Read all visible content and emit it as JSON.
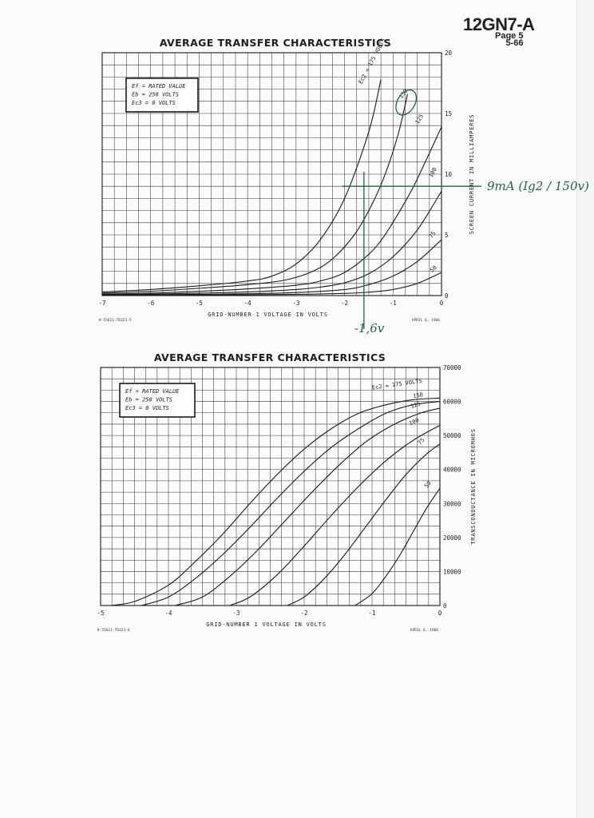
{
  "header": {
    "tube_code": "12GN7-A",
    "page_label": "Page 5",
    "date_code": "5-66"
  },
  "chart_data": [
    {
      "type": "line",
      "title": "AVERAGE TRANSFER CHARACTERISTICS",
      "xlabel": "GRID-NUMBER 1 VOLTAGE IN VOLTS",
      "ylabel": "SCREEN CURRENT IN MILLIAMPERES",
      "xlim": [
        -7,
        0
      ],
      "ylim": [
        0,
        20
      ],
      "x_ticks": [
        "-7",
        "-6",
        "-5",
        "-4",
        "-3",
        "-2",
        "-1",
        "0"
      ],
      "y_ticks": [
        "0",
        "5",
        "10",
        "15",
        "20"
      ],
      "grid": true,
      "conditions": [
        "Ef = RATED VALUE",
        "Eb = 250 VOLTS",
        "Ec3 = 0 VOLTS"
      ],
      "curve_param": "Ec2 =",
      "curve_unit": "VOLTS",
      "series": [
        {
          "name": "175",
          "x": [
            -7,
            -6,
            -5,
            -4,
            -3.5,
            -3,
            -2.5,
            -2,
            -1.5,
            -1.25
          ],
          "y": [
            0.3,
            0.5,
            0.8,
            1.2,
            1.6,
            2.6,
            4.6,
            8.0,
            13.5,
            17.8
          ]
        },
        {
          "name": "150",
          "x": [
            -7,
            -6,
            -5,
            -4,
            -3.2,
            -2.6,
            -2.2,
            -1.8,
            -1.5,
            -1.2,
            -0.9,
            -0.7
          ],
          "y": [
            0.2,
            0.35,
            0.6,
            0.9,
            1.3,
            2.1,
            3.2,
            5.0,
            7.0,
            9.6,
            13.2,
            16.6
          ]
        },
        {
          "name": "125",
          "x": [
            -7,
            -6,
            -5,
            -4,
            -3,
            -2.5,
            -2,
            -1.5,
            -1.2,
            -0.9,
            -0.6,
            -0.3,
            0
          ],
          "y": [
            0.12,
            0.2,
            0.35,
            0.55,
            0.85,
            1.2,
            1.9,
            3.4,
            4.8,
            6.7,
            8.8,
            11.3,
            13.9
          ]
        },
        {
          "name": "100",
          "x": [
            -7,
            -6,
            -5,
            -4,
            -3,
            -2.5,
            -2,
            -1.5,
            -1,
            -0.5,
            0
          ],
          "y": [
            0.08,
            0.12,
            0.2,
            0.3,
            0.5,
            0.7,
            1.05,
            1.8,
            3.2,
            5.4,
            8.6
          ]
        },
        {
          "name": "75",
          "x": [
            -7,
            -6,
            -5,
            -4,
            -3,
            -2,
            -1.5,
            -1,
            -0.5,
            0
          ],
          "y": [
            0.05,
            0.07,
            0.1,
            0.15,
            0.25,
            0.5,
            0.9,
            1.6,
            2.8,
            4.6
          ]
        },
        {
          "name": "50",
          "x": [
            -7,
            -6,
            -5,
            -4,
            -3,
            -2,
            -1.5,
            -1,
            -0.5,
            0
          ],
          "y": [
            0.02,
            0.03,
            0.05,
            0.07,
            0.1,
            0.18,
            0.28,
            0.5,
            1.0,
            1.9
          ]
        }
      ],
      "footnote_left": "K-55611-TD323-5",
      "footnote_right": "APRIL 6, 1966",
      "annotations": {
        "handwritten_right": "9mA (Ig2 / 150v)",
        "handwritten_bottom": "-1,6v",
        "marked_value_ma": 9,
        "marked_grid_v": -1.6,
        "circled_curve": "150"
      }
    },
    {
      "type": "line",
      "title": "AVERAGE TRANSFER CHARACTERISTICS",
      "xlabel": "GRID-NUMBER 1 VOLTAGE IN VOLTS",
      "ylabel": "TRANSCONDUCTANCE IN MICROMHOS",
      "xlim": [
        -5,
        0
      ],
      "ylim": [
        0,
        70000
      ],
      "x_ticks": [
        "-5",
        "-4",
        "-3",
        "-2",
        "-1",
        "0"
      ],
      "y_ticks": [
        "0",
        "10000",
        "20000",
        "30000",
        "40000",
        "50000",
        "60000",
        "70000"
      ],
      "grid": true,
      "conditions": [
        "Ef = RATED VALUE",
        "Eb = 250 VOLTS",
        "Ec3 = 0 VOLTS"
      ],
      "curve_param": "Ec2 =",
      "curve_unit": "VOLTS",
      "series": [
        {
          "name": "175",
          "x": [
            -4.85,
            -4.5,
            -4.0,
            -3.6,
            -3.2,
            -2.8,
            -2.4,
            -2.0,
            -1.6,
            -1.2,
            -0.8,
            -0.4,
            0
          ],
          "y": [
            0,
            1200,
            6000,
            13000,
            21000,
            30000,
            38500,
            46000,
            52000,
            56500,
            59000,
            60500,
            61000
          ]
        },
        {
          "name": "150",
          "x": [
            -4.4,
            -4.0,
            -3.6,
            -3.2,
            -2.8,
            -2.4,
            -2.0,
            -1.6,
            -1.2,
            -0.8,
            -0.4,
            0
          ],
          "y": [
            0,
            2500,
            8000,
            15000,
            23000,
            31500,
            39500,
            46500,
            52000,
            56500,
            59000,
            60000
          ]
        },
        {
          "name": "125",
          "x": [
            -3.9,
            -3.5,
            -3.1,
            -2.7,
            -2.3,
            -1.9,
            -1.5,
            -1.1,
            -0.7,
            -0.3,
            0
          ],
          "y": [
            0,
            2500,
            8500,
            16000,
            24500,
            33000,
            41000,
            48000,
            53000,
            56500,
            58000
          ]
        },
        {
          "name": "100",
          "x": [
            -3.1,
            -2.8,
            -2.4,
            -2.0,
            -1.6,
            -1.2,
            -0.8,
            -0.4,
            0
          ],
          "y": [
            0,
            2500,
            9000,
            17500,
            26500,
            35000,
            42500,
            48500,
            53000
          ]
        },
        {
          "name": "75",
          "x": [
            -2.25,
            -2.0,
            -1.7,
            -1.4,
            -1.1,
            -0.8,
            -0.5,
            -0.2,
            0
          ],
          "y": [
            0,
            2500,
            8000,
            15000,
            23000,
            31000,
            38500,
            44500,
            47500
          ]
        },
        {
          "name": "50",
          "x": [
            -1.25,
            -1.0,
            -0.8,
            -0.6,
            -0.4,
            -0.2,
            0
          ],
          "y": [
            0,
            3500,
            8500,
            14500,
            21500,
            28500,
            34500
          ]
        }
      ],
      "footnote_left": "K-55611-TD323-6",
      "footnote_right": "APRIL 6, 1966"
    }
  ]
}
